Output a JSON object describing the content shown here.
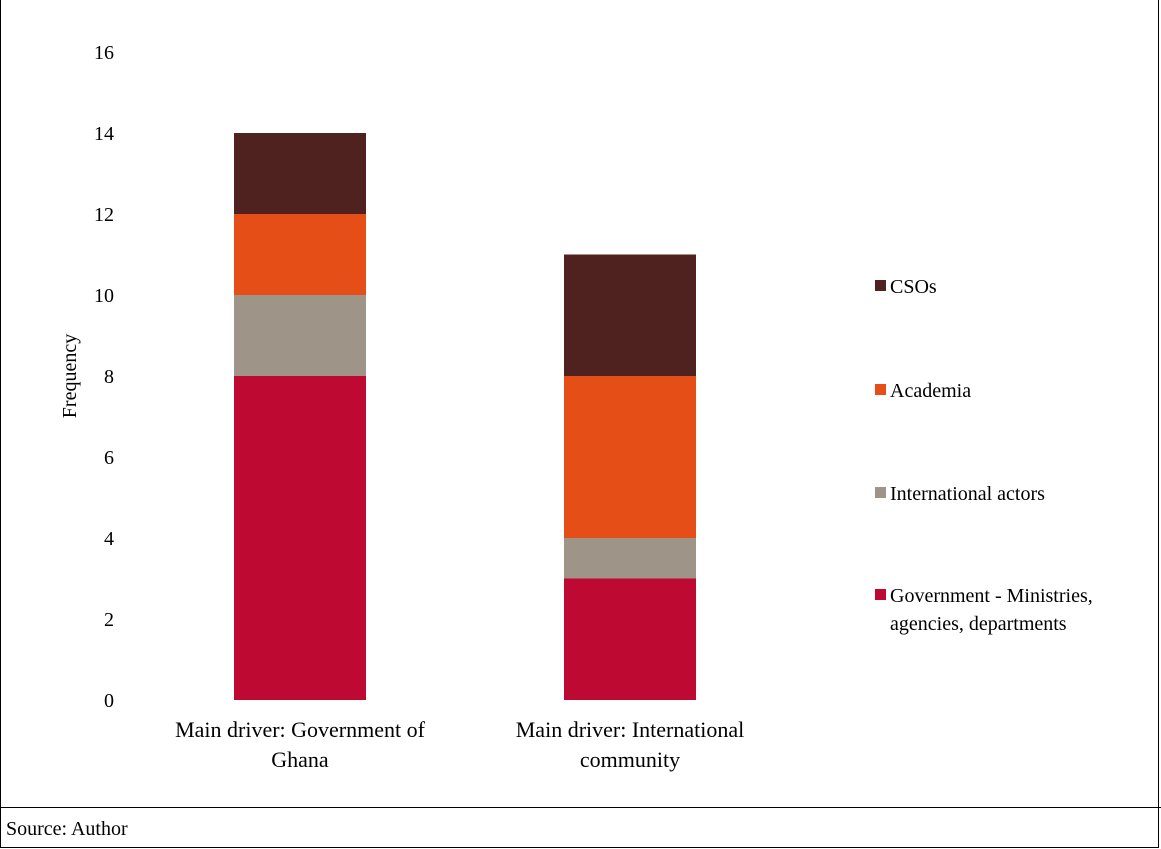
{
  "source_note": "Source: Author",
  "chart_data": {
    "type": "bar",
    "stacked": true,
    "categories": [
      [
        "Main driver: Government of",
        "Ghana"
      ],
      [
        "Main driver: International",
        "community"
      ]
    ],
    "series": [
      {
        "name": [
          "Government - Ministries,",
          "agencies, departments"
        ],
        "color": "#be0a32",
        "values": [
          8,
          3
        ]
      },
      {
        "name": [
          "International actors"
        ],
        "color": "#9e9487",
        "values": [
          2,
          1
        ]
      },
      {
        "name": [
          "Academia"
        ],
        "color": "#e54f17",
        "values": [
          2,
          4
        ]
      },
      {
        "name": [
          "CSOs"
        ],
        "color": "#4f221f",
        "values": [
          2,
          3
        ]
      }
    ],
    "ylabel": "Frequency",
    "ylim": [
      0,
      16
    ],
    "yticks": [
      0,
      2,
      4,
      6,
      8,
      10,
      12,
      14,
      16
    ],
    "grid": false,
    "legend_position": "right"
  }
}
